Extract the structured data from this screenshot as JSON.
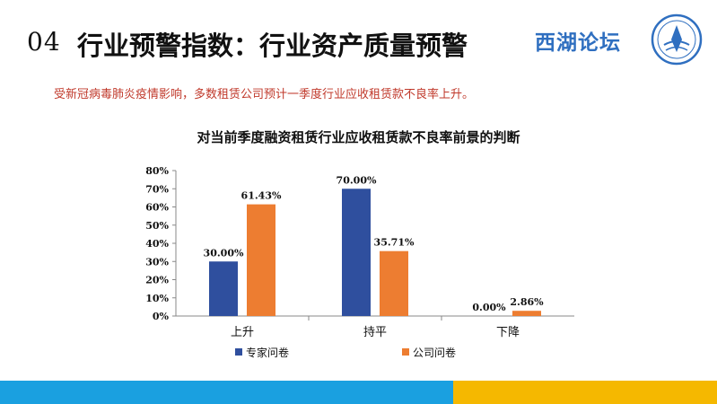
{
  "header": {
    "number": "04",
    "title": "行业预警指数：行业资产质量预警",
    "brand": "西湖论坛"
  },
  "subtitle": "受新冠病毒肺炎疫情影响，多数租赁公司预计一季度行业应收租赁款不良率上升。",
  "chart_data": {
    "type": "bar",
    "title": "对当前季度融资租赁行业应收租赁款不良率前景的判断",
    "categories": [
      "上升",
      "持平",
      "下降"
    ],
    "series": [
      {
        "name": "专家问卷",
        "values": [
          30.0,
          70.0,
          0.0
        ],
        "color": "#2f4f9e"
      },
      {
        "name": "公司问卷",
        "values": [
          61.43,
          35.71,
          2.86
        ],
        "color": "#ed7d31"
      }
    ],
    "data_labels": [
      [
        "30.00%",
        "70.00%",
        "0.00%"
      ],
      [
        "61.43%",
        "35.71%",
        "2.86%"
      ]
    ],
    "yticks": [
      "0%",
      "10%",
      "20%",
      "30%",
      "40%",
      "50%",
      "60%",
      "70%",
      "80%"
    ],
    "ylim": [
      0,
      80
    ],
    "legend_position": "bottom",
    "grid": false
  },
  "colors": {
    "accent_blue": "#1aa0e0",
    "accent_yellow": "#f5b800",
    "brand_blue": "#2f6fc0",
    "subtitle_red": "#c0392b"
  }
}
